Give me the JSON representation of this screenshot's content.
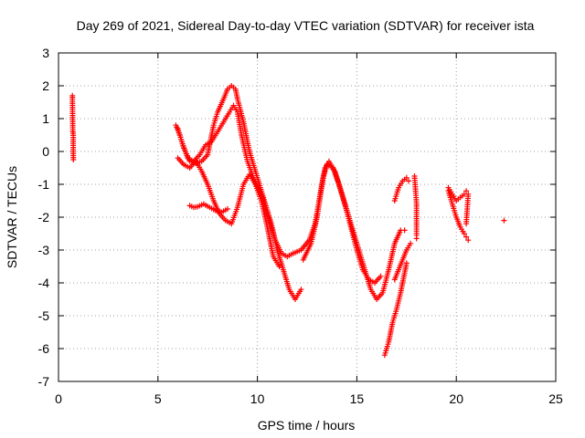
{
  "chart_data": {
    "type": "scatter",
    "title": "Day 269 of 2021, Sidereal Day-to-day VTEC variation (SDTVAR) for receiver ista",
    "xlabel": "GPS time / hours",
    "ylabel": "SDTVAR / TECUs",
    "xlim": [
      0,
      25
    ],
    "ylim": [
      -7,
      3
    ],
    "xticks": [
      "0",
      "5",
      "10",
      "15",
      "20",
      "25"
    ],
    "yticks": [
      "3",
      "2",
      "1",
      "0",
      "-1",
      "-2",
      "-3",
      "-4",
      "-5",
      "-6",
      "-7"
    ],
    "grid": true,
    "marker": "+",
    "color": "#ff0000",
    "tracks": [
      {
        "x": [
          0.7,
          0.7,
          0.72,
          0.74,
          0.74,
          0.75
        ],
        "y": [
          1.7,
          1.65,
          0.6,
          0.55,
          0.0,
          -0.25
        ]
      },
      {
        "x": [
          5.9,
          6.1,
          6.3,
          6.6,
          6.9,
          7.2,
          7.5,
          7.7,
          7.8,
          8.0,
          8.3,
          8.5,
          8.7,
          8.9,
          9.0,
          9.3,
          9.6,
          10.0,
          10.3,
          10.6,
          10.9,
          11.2,
          11.5,
          11.8,
          12.2,
          12.6,
          12.9,
          13.1,
          13.3,
          13.5,
          13.8,
          14.1,
          14.4,
          14.7,
          15.0,
          15.3,
          15.6,
          15.9,
          16.2
        ],
        "y": [
          0.8,
          0.5,
          0.1,
          -0.3,
          -0.35,
          -0.3,
          -0.1,
          0.5,
          0.8,
          1.2,
          1.6,
          1.9,
          2.0,
          1.9,
          1.6,
          0.9,
          0.0,
          -0.8,
          -1.4,
          -2.1,
          -2.7,
          -3.1,
          -3.2,
          -3.1,
          -3.0,
          -2.7,
          -2.2,
          -1.5,
          -0.8,
          -0.4,
          -0.5,
          -1.0,
          -1.6,
          -2.3,
          -3.0,
          -3.6,
          -3.9,
          -4.0,
          -3.8
        ]
      },
      {
        "x": [
          6.0,
          6.2,
          6.5,
          6.8,
          7.1,
          7.4,
          7.7,
          8.0,
          8.3,
          8.6,
          8.8,
          9.0,
          9.2,
          9.5,
          9.8,
          10.1,
          10.4,
          10.7,
          11.0,
          11.3,
          11.6,
          11.9,
          12.2
        ],
        "y": [
          0.7,
          0.3,
          -0.2,
          -0.3,
          -0.1,
          0.2,
          0.3,
          0.6,
          0.9,
          1.2,
          1.4,
          1.2,
          0.5,
          -0.3,
          -0.8,
          -1.2,
          -1.6,
          -2.2,
          -3.0,
          -3.6,
          -4.2,
          -4.5,
          -4.2
        ]
      },
      {
        "x": [
          6.0,
          6.3,
          6.6,
          6.9,
          7.2,
          7.5,
          7.8,
          8.1,
          8.4,
          8.7,
          9.0,
          9.3,
          9.6,
          9.9,
          10.2,
          10.5,
          10.8,
          11.1
        ],
        "y": [
          -0.2,
          -0.4,
          -0.5,
          -0.3,
          -0.6,
          -1.0,
          -1.5,
          -1.9,
          -2.1,
          -2.2,
          -1.7,
          -1.0,
          -0.7,
          -1.0,
          -1.5,
          -2.3,
          -3.2,
          -3.5
        ]
      },
      {
        "x": [
          6.6,
          6.8,
          7.0,
          7.3,
          7.6,
          7.9,
          8.2,
          8.5
        ],
        "y": [
          -1.65,
          -1.7,
          -1.68,
          -1.6,
          -1.7,
          -1.8,
          -1.85,
          -1.75
        ]
      },
      {
        "x": [
          12.3,
          12.7,
          13.0,
          13.2,
          13.4,
          13.6,
          13.9,
          14.2,
          14.5,
          14.8,
          15.1,
          15.4,
          15.7,
          16.0,
          16.3,
          16.6,
          16.9,
          17.2,
          17.4
        ],
        "y": [
          -3.3,
          -2.8,
          -2.0,
          -1.2,
          -0.5,
          -0.3,
          -0.6,
          -1.2,
          -1.8,
          -2.4,
          -3.0,
          -3.6,
          -4.2,
          -4.5,
          -4.3,
          -3.6,
          -2.8,
          -2.4,
          -2.4
        ]
      },
      {
        "x": [
          16.4,
          16.6,
          16.8,
          17.0,
          17.2,
          17.4,
          17.5
        ],
        "y": [
          -6.2,
          -5.8,
          -5.2,
          -4.8,
          -4.3,
          -3.7,
          -3.4
        ]
      },
      {
        "x": [
          16.9,
          17.1,
          17.3,
          17.5,
          17.7
        ],
        "y": [
          -3.9,
          -3.6,
          -3.3,
          -3.0,
          -2.8
        ]
      },
      {
        "x": [
          16.9,
          17.1,
          17.3,
          17.5,
          17.6
        ],
        "y": [
          -1.5,
          -1.1,
          -0.9,
          -0.8,
          -0.9
        ]
      },
      {
        "x": [
          17.9,
          18.0,
          18.0,
          18.0,
          18.0
        ],
        "y": [
          -0.75,
          -1.6,
          -2.3,
          -2.55,
          -2.65
        ]
      },
      {
        "x": [
          19.6,
          19.8,
          20.0,
          20.2,
          20.4,
          20.5,
          20.6
        ],
        "y": [
          -1.2,
          -1.6,
          -2.0,
          -2.3,
          -2.5,
          -2.6,
          -2.7
        ]
      },
      {
        "x": [
          19.6,
          19.8,
          20.0,
          20.2,
          20.4,
          20.5,
          20.6,
          20.5
        ],
        "y": [
          -1.1,
          -1.3,
          -1.5,
          -1.4,
          -1.3,
          -1.2,
          -1.3,
          -2.2
        ]
      },
      {
        "x": [
          22.4
        ],
        "y": [
          -2.1
        ]
      }
    ]
  }
}
